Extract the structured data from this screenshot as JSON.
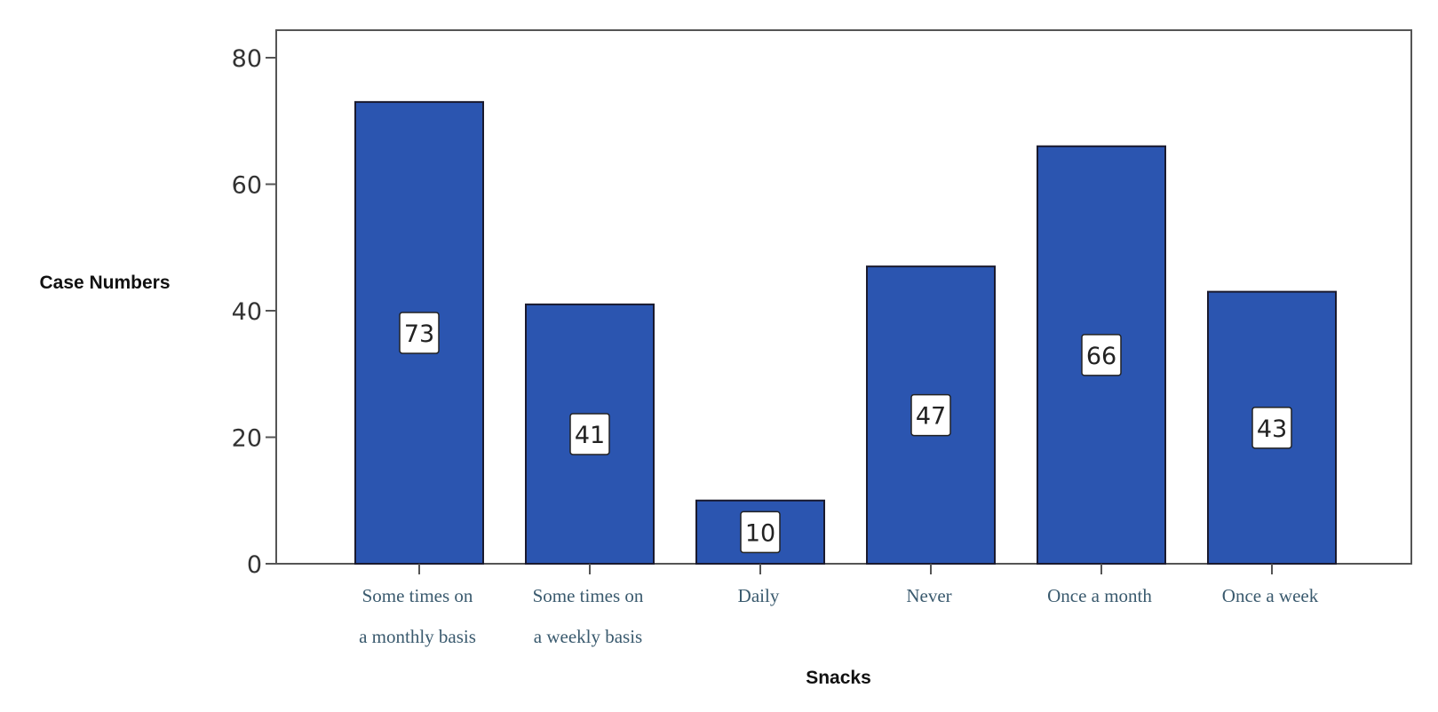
{
  "chart_data": {
    "type": "bar",
    "categories": [
      [
        "Some times on",
        "a monthly basis"
      ],
      [
        "Some times on",
        "a weekly basis"
      ],
      [
        "Daily"
      ],
      [
        "Never"
      ],
      [
        "Once a month"
      ],
      [
        "Once a week"
      ]
    ],
    "values": [
      73,
      41,
      10,
      47,
      66,
      43
    ],
    "data_labels": [
      "73",
      "41",
      "10",
      "47",
      "66",
      "43"
    ],
    "xlabel": "Snacks",
    "ylabel": "Case Numbers",
    "ylim": [
      0,
      80
    ],
    "yticks": [
      0,
      20,
      40,
      60,
      80
    ],
    "ytick_labels": [
      "0",
      "20",
      "40",
      "60",
      "80"
    ],
    "bar_color": "#2b55b0",
    "grid": false,
    "legend": "none"
  }
}
